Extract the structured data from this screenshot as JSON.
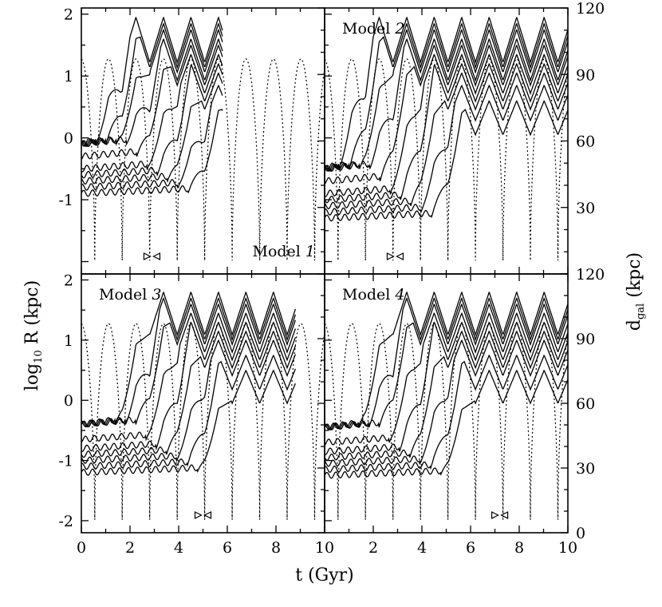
{
  "chart_data": {
    "type": "line",
    "xlabel": "t (Gyr)",
    "ylabel_left": "log",
    "ylabel_left_sub": "10",
    "ylabel_left_tail": " R (kpc)",
    "ylabel_right": "d",
    "ylabel_right_sub": "gal",
    "ylabel_right_tail": " (kpc)",
    "xlim": [
      0,
      10
    ],
    "ylim_left": [
      -2.2,
      2.1
    ],
    "ylim_right": [
      0,
      120
    ],
    "x_ticks": [
      "0",
      "2",
      "4",
      "6",
      "8",
      "10"
    ],
    "y_ticks_left": [
      "-2",
      "-1",
      "0",
      "1",
      "2"
    ],
    "y_ticks_right": [
      "0",
      "30",
      "60",
      "90",
      "120"
    ],
    "panels": [
      {
        "label": "Model ",
        "label_num": "1",
        "label_pos": "bottom-right",
        "t_end": 5.8,
        "orbit_period": 1.13,
        "first_pericenter": 0.55,
        "apocenter_kpc": 97,
        "pericenter_kpc": 6,
        "marker_t": 2.9,
        "lagrangian_radii": {
          "inner_log_r": [
            -0.9,
            -0.8,
            -0.7,
            -0.6,
            -0.5,
            -0.3,
            -0.1
          ],
          "outer_peak_log_r": [
            0.6,
            0.85,
            1.05,
            1.2,
            1.35,
            1.5,
            1.6,
            1.75,
            1.85,
            1.95
          ]
        }
      },
      {
        "label": "Model ",
        "label_num": "2",
        "label_pos": "top-left",
        "t_end": 10.0,
        "orbit_period": 1.13,
        "first_pericenter": 0.55,
        "apocenter_kpc": 97,
        "pericenter_kpc": 6,
        "marker_t": 2.9,
        "lagrangian_radii": {
          "inner_log_r": [
            -1.3,
            -1.2,
            -1.1,
            -1.0,
            -0.9,
            -0.7,
            -0.5
          ],
          "outer_peak_log_r": [
            0.6,
            0.85,
            1.05,
            1.2,
            1.35,
            1.5,
            1.6,
            1.75,
            1.85,
            1.95
          ]
        }
      },
      {
        "label": "Model ",
        "label_num": "3",
        "label_pos": "top-left",
        "t_end": 8.8,
        "orbit_period": 1.13,
        "first_pericenter": 0.55,
        "apocenter_kpc": 97,
        "pericenter_kpc": 6,
        "marker_t": 5.0,
        "lagrangian_radii": {
          "inner_log_r": [
            -1.2,
            -1.1,
            -1.0,
            -0.9,
            -0.8,
            -0.65,
            -0.4
          ],
          "outer_peak_log_r": [
            0.5,
            0.75,
            1.0,
            1.15,
            1.3,
            1.45,
            1.6,
            1.7,
            1.8
          ]
        }
      },
      {
        "label": "Model ",
        "label_num": "4",
        "label_pos": "top-left",
        "t_end": 10.0,
        "orbit_period": 1.13,
        "first_pericenter": 0.55,
        "apocenter_kpc": 97,
        "pericenter_kpc": 6,
        "marker_t": 7.2,
        "lagrangian_radii": {
          "inner_log_r": [
            -1.25,
            -1.15,
            -1.05,
            -0.95,
            -0.85,
            -0.7,
            -0.45
          ],
          "outer_peak_log_r": [
            0.5,
            0.75,
            1.0,
            1.15,
            1.3,
            1.45,
            1.6,
            1.7,
            1.8
          ]
        }
      }
    ]
  }
}
